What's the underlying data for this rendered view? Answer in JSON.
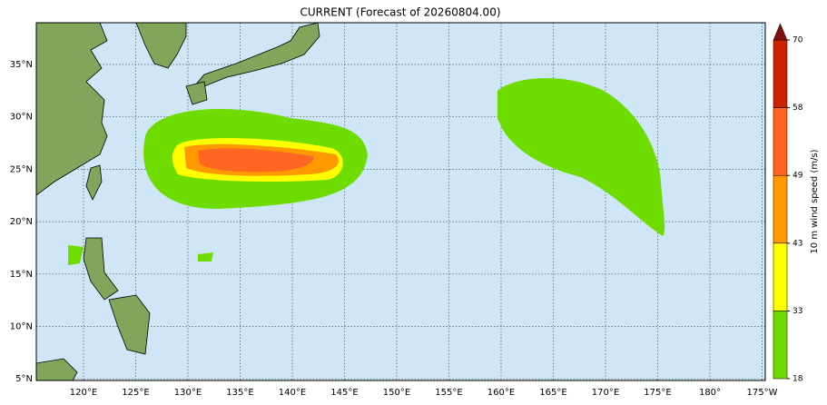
{
  "title": "CURRENT (Forecast of 20260804.00)",
  "map": {
    "lon_labels": [
      "120°E",
      "125°E",
      "130°E",
      "135°E",
      "140°E",
      "145°E",
      "150°E",
      "155°E",
      "160°E",
      "165°E",
      "170°E",
      "175°E",
      "180°",
      "175°W"
    ],
    "lat_labels": [
      "35°N",
      "30°N",
      "25°N",
      "20°N",
      "15°N",
      "10°N",
      "5°N"
    ]
  },
  "colorbar": {
    "label": "10 m wind speed (m/s)",
    "levels": [
      18,
      33,
      43,
      49,
      58,
      70
    ],
    "colors": [
      "#6fdc00",
      "#ffff00",
      "#ff9900",
      "#ff6622",
      "#cc2200"
    ],
    "extend_color": "#801010"
  }
}
